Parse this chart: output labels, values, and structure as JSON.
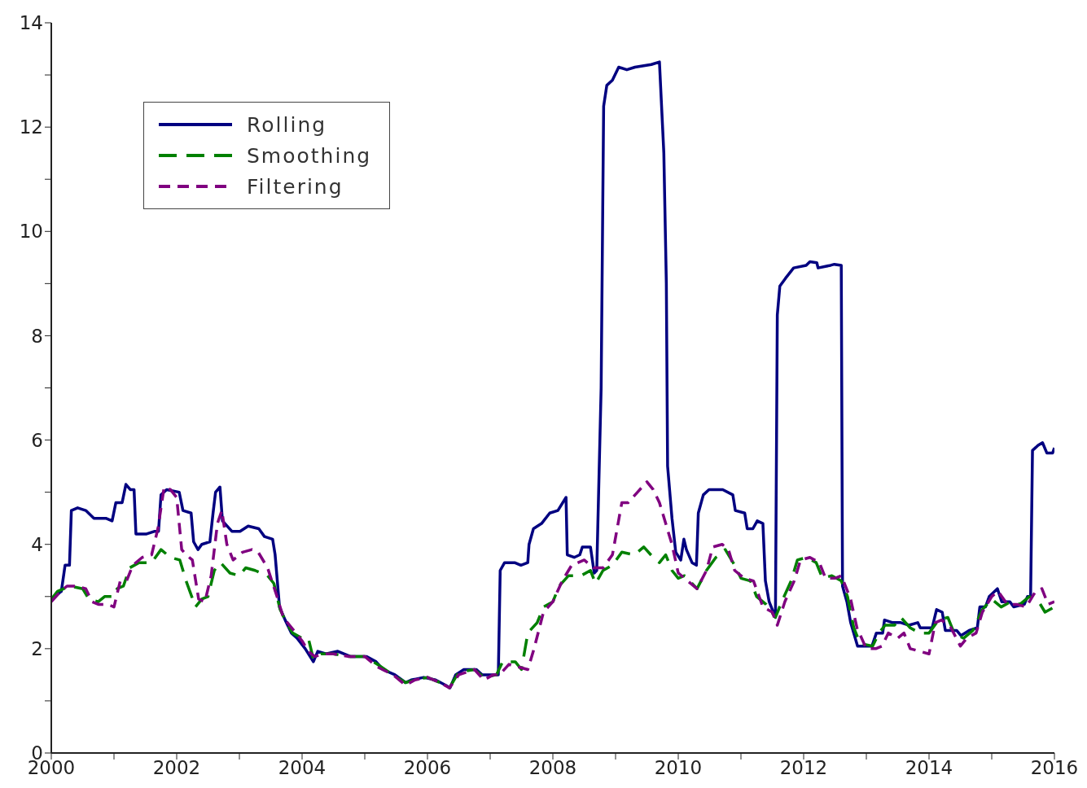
{
  "chart_data": {
    "type": "line",
    "xlim": [
      2000,
      2016
    ],
    "ylim": [
      0,
      14
    ],
    "xticks": [
      2000,
      {
        "value": 2001,
        "label": null
      },
      2002,
      {
        "value": 2003,
        "label": null
      },
      2004,
      {
        "value": 2005,
        "label": null
      },
      2006,
      {
        "value": 2007,
        "label": null
      },
      2008,
      {
        "value": 2009,
        "label": null
      },
      2010,
      {
        "value": 2011,
        "label": null
      },
      2012,
      {
        "value": 2013,
        "label": null
      },
      2014,
      {
        "value": 2015,
        "label": null
      },
      2016
    ],
    "yticks": [
      0,
      {
        "value": 1,
        "label": null
      },
      2,
      {
        "value": 3,
        "label": null
      },
      4,
      {
        "value": 5,
        "label": null
      },
      6,
      {
        "value": 7,
        "label": null
      },
      8,
      {
        "value": 9,
        "label": null
      },
      10,
      {
        "value": 11,
        "label": null
      },
      12,
      {
        "value": 13,
        "label": null
      },
      14
    ],
    "grid": false,
    "legend": "top left",
    "marker": "none",
    "series": [
      {
        "name": "Rolling",
        "color": "#000080",
        "line_style": "solid",
        "x": [
          2000.0,
          2000.16,
          2000.22,
          2000.29,
          2000.32,
          2000.42,
          2000.55,
          2000.68,
          2000.87,
          2000.97,
          2001.03,
          2001.13,
          2001.19,
          2001.26,
          2001.32,
          2001.35,
          2001.52,
          2001.65,
          2001.71,
          2001.75,
          2001.84,
          2002.04,
          2002.1,
          2002.23,
          2002.27,
          2002.34,
          2002.4,
          2002.53,
          2002.58,
          2002.62,
          2002.69,
          2002.73,
          2002.88,
          2003.01,
          2003.14,
          2003.31,
          2003.4,
          2003.53,
          2003.57,
          2003.64,
          2003.73,
          2003.83,
          2003.92,
          2004.05,
          2004.18,
          2004.25,
          2004.38,
          2004.57,
          2004.77,
          2005.03,
          2005.18,
          2005.29,
          2005.48,
          2005.65,
          2005.74,
          2005.94,
          2006.13,
          2006.29,
          2006.36,
          2006.45,
          2006.58,
          2006.78,
          2006.87,
          2006.97,
          2007.13,
          2007.16,
          2007.23,
          2007.39,
          2007.49,
          2007.6,
          2007.62,
          2007.69,
          2007.82,
          2007.95,
          2008.08,
          2008.21,
          2008.23,
          2008.34,
          2008.43,
          2008.47,
          2008.6,
          2008.66,
          2008.7,
          2008.77,
          2008.81,
          2008.86,
          2008.95,
          2009.05,
          2009.18,
          2009.31,
          2009.57,
          2009.7,
          2009.77,
          2009.81,
          2009.83,
          2009.9,
          2009.96,
          2010.04,
          2010.09,
          2010.13,
          2010.22,
          2010.29,
          2010.32,
          2010.4,
          2010.49,
          2010.71,
          2010.87,
          2010.91,
          2011.06,
          2011.1,
          2011.19,
          2011.26,
          2011.35,
          2011.39,
          2011.45,
          2011.55,
          2011.58,
          2011.62,
          2011.71,
          2011.84,
          2012.04,
          2012.1,
          2012.21,
          2012.23,
          2012.43,
          2012.49,
          2012.6,
          2012.62,
          2012.69,
          2012.75,
          2012.86,
          2013.09,
          2013.16,
          2013.26,
          2013.29,
          2013.42,
          2013.55,
          2013.68,
          2013.82,
          2013.86,
          2014.05,
          2014.12,
          2014.21,
          2014.26,
          2014.44,
          2014.51,
          2014.64,
          2014.77,
          2014.81,
          2014.9,
          2014.96,
          2015.09,
          2015.16,
          2015.29,
          2015.35,
          2015.52,
          2015.57,
          2015.62,
          2015.65,
          2015.74,
          2015.81,
          2015.88,
          2015.97,
          2016.0
        ],
        "values": [
          2.95,
          3.1,
          3.6,
          3.6,
          4.65,
          4.7,
          4.65,
          4.5,
          4.5,
          4.45,
          4.8,
          4.8,
          5.15,
          5.05,
          5.05,
          4.2,
          4.2,
          4.25,
          4.25,
          4.95,
          5.05,
          5.0,
          4.65,
          4.6,
          4.05,
          3.9,
          4.0,
          4.05,
          4.6,
          5.0,
          5.1,
          4.45,
          4.25,
          4.25,
          4.35,
          4.3,
          4.15,
          4.1,
          3.8,
          2.8,
          2.55,
          2.3,
          2.2,
          2.0,
          1.75,
          1.95,
          1.9,
          1.95,
          1.85,
          1.85,
          1.75,
          1.6,
          1.5,
          1.35,
          1.4,
          1.45,
          1.4,
          1.3,
          1.25,
          1.5,
          1.6,
          1.6,
          1.5,
          1.5,
          1.5,
          3.5,
          3.65,
          3.65,
          3.6,
          3.65,
          4.0,
          4.3,
          4.4,
          4.6,
          4.65,
          4.9,
          3.8,
          3.75,
          3.8,
          3.95,
          3.95,
          3.45,
          3.5,
          7.0,
          12.4,
          12.8,
          12.9,
          13.15,
          13.1,
          13.15,
          13.2,
          13.25,
          11.5,
          9.0,
          5.5,
          4.5,
          3.85,
          3.7,
          4.1,
          3.9,
          3.65,
          3.6,
          4.6,
          4.95,
          5.05,
          5.05,
          4.95,
          4.65,
          4.6,
          4.3,
          4.3,
          4.45,
          4.4,
          3.3,
          2.9,
          2.6,
          8.4,
          8.95,
          9.1,
          9.3,
          9.35,
          9.42,
          9.4,
          9.3,
          9.35,
          9.37,
          9.35,
          3.2,
          2.9,
          2.5,
          2.05,
          2.05,
          2.3,
          2.3,
          2.55,
          2.5,
          2.5,
          2.45,
          2.5,
          2.4,
          2.4,
          2.75,
          2.7,
          2.35,
          2.35,
          2.25,
          2.35,
          2.4,
          2.8,
          2.8,
          3.0,
          3.15,
          2.9,
          2.9,
          2.8,
          2.85,
          3.0,
          3.0,
          5.8,
          5.9,
          5.95,
          5.75,
          5.75,
          5.85
        ]
      },
      {
        "name": "Smoothing",
        "color": "#008000",
        "line_style": "dashed",
        "x": [
          2000.0,
          2000.1,
          2000.2,
          2000.3,
          2000.5,
          2000.6,
          2000.75,
          2000.85,
          2001.0,
          2001.05,
          2001.15,
          2001.25,
          2001.4,
          2001.6,
          2001.75,
          2001.9,
          2002.05,
          2002.15,
          2002.3,
          2002.4,
          2002.5,
          2002.6,
          2002.7,
          2002.85,
          2003.0,
          2003.1,
          2003.25,
          2003.45,
          2003.55,
          2003.65,
          2003.75,
          2003.85,
          2004.0,
          2004.1,
          2004.18,
          2004.3,
          2004.5,
          2004.75,
          2005.0,
          2005.2,
          2005.45,
          2005.65,
          2005.8,
          2006.0,
          2006.2,
          2006.35,
          2006.5,
          2006.75,
          2006.9,
          2007.1,
          2007.2,
          2007.4,
          2007.5,
          2007.6,
          2007.75,
          2007.85,
          2008.0,
          2008.1,
          2008.25,
          2008.45,
          2008.6,
          2008.68,
          2008.8,
          2008.95,
          2009.1,
          2009.3,
          2009.45,
          2009.6,
          2009.7,
          2009.8,
          2009.9,
          2010.0,
          2010.1,
          2010.3,
          2010.45,
          2010.6,
          2010.75,
          2010.9,
          2011.0,
          2011.15,
          2011.25,
          2011.4,
          2011.55,
          2011.65,
          2011.8,
          2011.9,
          2012.05,
          2012.2,
          2012.3,
          2012.45,
          2012.6,
          2012.7,
          2012.8,
          2012.9,
          2013.1,
          2013.2,
          2013.3,
          2013.45,
          2013.55,
          2013.7,
          2013.85,
          2014.0,
          2014.15,
          2014.3,
          2014.4,
          2014.55,
          2014.7,
          2014.85,
          2015.0,
          2015.15,
          2015.3,
          2015.45,
          2015.6,
          2015.75,
          2015.85,
          2016.0
        ],
        "values": [
          2.95,
          3.1,
          3.15,
          3.2,
          3.15,
          2.95,
          2.9,
          3.0,
          3.0,
          3.15,
          3.2,
          3.55,
          3.65,
          3.65,
          3.9,
          3.75,
          3.7,
          3.3,
          2.8,
          2.95,
          3.0,
          3.5,
          3.65,
          3.45,
          3.4,
          3.55,
          3.5,
          3.4,
          3.25,
          2.75,
          2.5,
          2.3,
          2.2,
          2.2,
          1.8,
          1.9,
          1.9,
          1.85,
          1.85,
          1.7,
          1.5,
          1.35,
          1.4,
          1.45,
          1.35,
          1.25,
          1.55,
          1.6,
          1.45,
          1.5,
          1.75,
          1.75,
          1.6,
          2.3,
          2.5,
          2.8,
          2.9,
          3.2,
          3.4,
          3.4,
          3.5,
          3.25,
          3.5,
          3.6,
          3.85,
          3.8,
          3.95,
          3.75,
          3.65,
          3.8,
          3.5,
          3.35,
          3.4,
          3.15,
          3.5,
          3.75,
          3.9,
          3.6,
          3.35,
          3.3,
          3.0,
          2.85,
          2.6,
          2.9,
          3.3,
          3.7,
          3.75,
          3.65,
          3.35,
          3.4,
          3.3,
          3.0,
          2.4,
          2.1,
          2.05,
          2.3,
          2.45,
          2.45,
          2.6,
          2.4,
          2.3,
          2.3,
          2.55,
          2.6,
          2.3,
          2.2,
          2.35,
          2.75,
          2.95,
          2.8,
          2.9,
          2.85,
          3.0,
          2.9,
          2.7,
          2.8
        ]
      },
      {
        "name": "Filtering",
        "color": "#800080",
        "line_style": "dashed",
        "x": [
          2000.0,
          2000.15,
          2000.25,
          2000.4,
          2000.55,
          2000.65,
          2000.75,
          2000.9,
          2001.0,
          2001.1,
          2001.2,
          2001.3,
          2001.45,
          2001.6,
          2001.7,
          2001.8,
          2001.9,
          2002.0,
          2002.08,
          2002.15,
          2002.25,
          2002.35,
          2002.45,
          2002.55,
          2002.65,
          2002.72,
          2002.8,
          2002.9,
          2003.05,
          2003.2,
          2003.3,
          2003.45,
          2003.6,
          2003.7,
          2003.8,
          2003.9,
          2004.0,
          2004.1,
          2004.2,
          2004.35,
          2004.5,
          2004.75,
          2005.0,
          2005.2,
          2005.45,
          2005.65,
          2005.8,
          2006.0,
          2006.2,
          2006.35,
          2006.5,
          2006.75,
          2006.9,
          2007.05,
          2007.15,
          2007.3,
          2007.45,
          2007.6,
          2007.7,
          2007.85,
          2008.0,
          2008.15,
          2008.3,
          2008.5,
          2008.65,
          2008.8,
          2008.95,
          2009.1,
          2009.2,
          2009.35,
          2009.5,
          2009.6,
          2009.7,
          2009.8,
          2009.9,
          2010.0,
          2010.15,
          2010.3,
          2010.45,
          2010.55,
          2010.7,
          2010.8,
          2010.9,
          2011.05,
          2011.2,
          2011.35,
          2011.5,
          2011.58,
          2011.7,
          2011.85,
          2011.95,
          2012.1,
          2012.25,
          2012.35,
          2012.5,
          2012.6,
          2012.75,
          2012.85,
          2013.0,
          2013.15,
          2013.25,
          2013.35,
          2013.5,
          2013.6,
          2013.7,
          2013.85,
          2014.0,
          2014.1,
          2014.2,
          2014.35,
          2014.5,
          2014.6,
          2014.75,
          2014.85,
          2015.0,
          2015.1,
          2015.25,
          2015.4,
          2015.55,
          2015.7,
          2015.8,
          2015.9,
          2016.0
        ],
        "values": [
          2.9,
          3.1,
          3.2,
          3.2,
          3.15,
          2.9,
          2.85,
          2.85,
          2.8,
          3.3,
          3.3,
          3.6,
          3.75,
          3.8,
          4.3,
          5.1,
          5.05,
          4.9,
          3.9,
          3.8,
          3.7,
          2.95,
          2.9,
          3.4,
          4.4,
          4.65,
          4.0,
          3.7,
          3.85,
          3.9,
          3.85,
          3.55,
          3.0,
          2.6,
          2.45,
          2.3,
          2.15,
          1.95,
          1.85,
          1.9,
          1.9,
          1.85,
          1.85,
          1.65,
          1.5,
          1.3,
          1.4,
          1.45,
          1.35,
          1.25,
          1.5,
          1.6,
          1.4,
          1.5,
          1.5,
          1.7,
          1.65,
          1.6,
          2.0,
          2.7,
          2.9,
          3.3,
          3.6,
          3.7,
          3.55,
          3.55,
          3.8,
          4.8,
          4.8,
          5.0,
          5.2,
          5.05,
          4.8,
          4.4,
          4.0,
          3.45,
          3.3,
          3.15,
          3.5,
          3.95,
          4.0,
          3.9,
          3.5,
          3.35,
          3.3,
          2.8,
          2.7,
          2.45,
          2.9,
          3.3,
          3.7,
          3.75,
          3.65,
          3.35,
          3.35,
          3.4,
          2.95,
          2.4,
          2.0,
          2.0,
          2.05,
          2.3,
          2.2,
          2.3,
          2.0,
          1.95,
          1.9,
          2.5,
          2.55,
          2.4,
          2.05,
          2.2,
          2.3,
          2.7,
          3.0,
          3.1,
          2.85,
          2.85,
          2.8,
          3.1,
          3.15,
          2.85,
          2.9
        ]
      }
    ]
  }
}
